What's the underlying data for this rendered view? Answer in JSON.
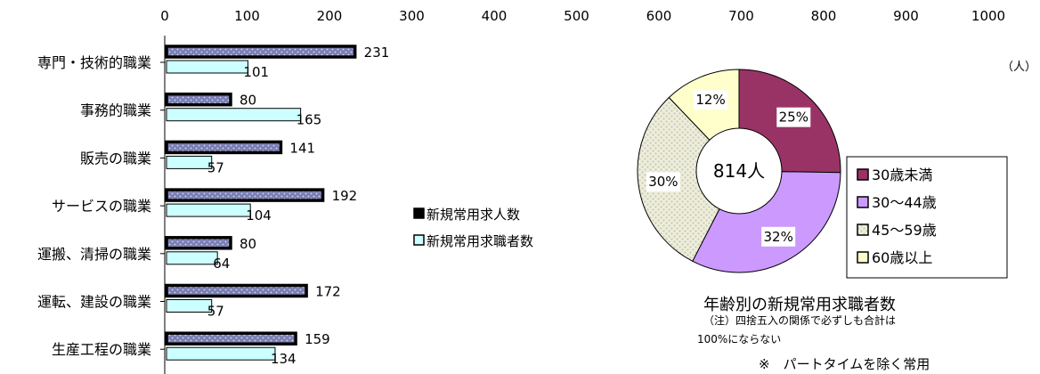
{
  "chart_data": [
    {
      "type": "bar",
      "orientation": "horizontal",
      "categories": [
        "専門・技術的職業",
        "事務的職業",
        "販売の職業",
        "サービスの職業",
        "運搬、清掃の職業",
        "運転、建設の職業",
        "生産工程の職業"
      ],
      "series": [
        {
          "name": "新規常用求人数",
          "values": [
            231,
            80,
            141,
            192,
            80,
            172,
            159
          ],
          "color": "#7b7fb3"
        },
        {
          "name": "新規常用求職者数",
          "values": [
            101,
            165,
            57,
            104,
            64,
            57,
            134
          ],
          "color": "#ccffff"
        }
      ],
      "xticks": [
        0,
        100,
        200,
        300,
        400,
        500,
        600,
        700,
        800,
        900,
        1000
      ],
      "xlim": [
        0,
        1000
      ],
      "unit": "（人）",
      "legend_position": "center"
    },
    {
      "type": "pie",
      "title": "年齢別の新規常用求職者数",
      "center_label": "814人",
      "labels": [
        "30歳未満",
        "30～44歳",
        "45～59歳",
        "60歳以上"
      ],
      "values": [
        25,
        32,
        30,
        12
      ],
      "value_labels": [
        "25%",
        "32%",
        "30%",
        "12%"
      ],
      "colors": [
        "#993366",
        "#cc99ff",
        "#eeeedd",
        "#ffffcc"
      ],
      "legend_position": "right"
    }
  ],
  "notes": {
    "note1": "（注）四捨五入の関係で必ずしも合計は",
    "note2": "100%にならない",
    "note3": "※　パートタイムを除く常用"
  }
}
